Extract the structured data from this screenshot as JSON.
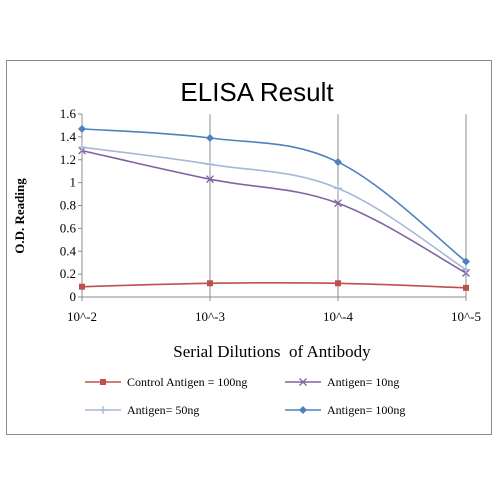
{
  "chart_data": {
    "type": "line",
    "title": "ELISA Result",
    "xlabel": "Serial Dilutions  of Antibody",
    "ylabel": "O.D. Reading",
    "categories": [
      "10^-2",
      "10^-3",
      "10^-4",
      "10^-5"
    ],
    "ylim": [
      0,
      1.6
    ],
    "yticks": [
      "0",
      "0.2",
      "0.4",
      "0.6",
      "0.8",
      "1",
      "1.2",
      "1.4",
      "1.6"
    ],
    "grid": "vertical",
    "legend_position": "bottom",
    "series": [
      {
        "name": "Control Antigen = 100ng",
        "values": [
          0.09,
          0.12,
          0.12,
          0.08
        ],
        "color": "#c0504d",
        "marker": "square"
      },
      {
        "name": "Antigen= 10ng",
        "values": [
          1.28,
          1.03,
          0.82,
          0.21
        ],
        "color": "#8064a2",
        "marker": "x"
      },
      {
        "name": "Antigen= 50ng",
        "values": [
          1.31,
          1.16,
          0.95,
          0.24
        ],
        "color": "#a5b8d8",
        "marker": "plus"
      },
      {
        "name": "Antigen= 100ng",
        "values": [
          1.47,
          1.39,
          1.18,
          0.31
        ],
        "color": "#4f81bd",
        "marker": "diamond"
      }
    ]
  }
}
